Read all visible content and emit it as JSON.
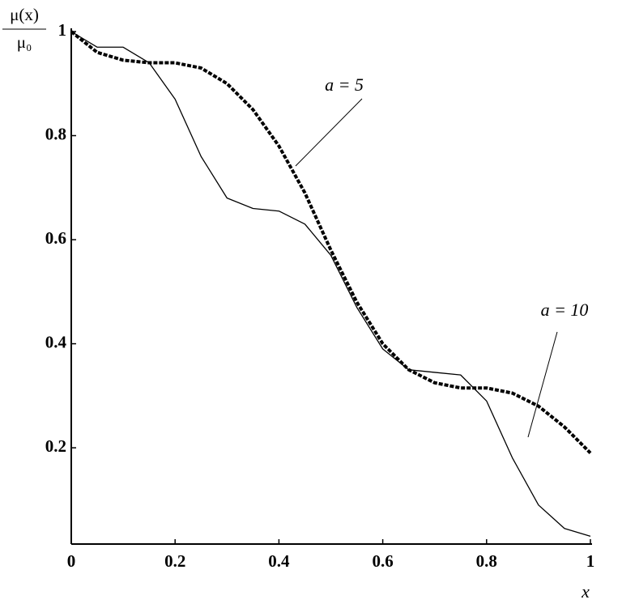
{
  "chart_data": {
    "type": "line",
    "y_label": {
      "numerator": "μ(x)",
      "denominator": "μ₀"
    },
    "x_label": "x",
    "x": [
      0,
      0.05,
      0.1,
      0.15,
      0.2,
      0.25,
      0.3,
      0.35,
      0.4,
      0.45,
      0.5,
      0.55,
      0.6,
      0.65,
      0.7,
      0.75,
      0.8,
      0.85,
      0.9,
      0.95,
      1
    ],
    "series": [
      {
        "name": "a = 5",
        "color": "#000000",
        "dashed": true,
        "values": [
          1.0,
          0.96,
          0.945,
          0.94,
          0.94,
          0.93,
          0.9,
          0.85,
          0.78,
          0.69,
          0.58,
          0.48,
          0.4,
          0.35,
          0.325,
          0.315,
          0.315,
          0.305,
          0.28,
          0.24,
          0.19
        ]
      },
      {
        "name": "a = 10",
        "color": "#000000",
        "dashed": false,
        "values": [
          1.0,
          0.97,
          0.97,
          0.94,
          0.87,
          0.76,
          0.68,
          0.66,
          0.655,
          0.63,
          0.57,
          0.47,
          0.39,
          0.35,
          0.345,
          0.34,
          0.29,
          0.18,
          0.09,
          0.045,
          0.03
        ]
      }
    ],
    "xlim": [
      0,
      1
    ],
    "ylim": [
      0.015,
      1
    ],
    "xticks": [
      0,
      0.2,
      0.4,
      0.6,
      0.8,
      1
    ],
    "yticks": [
      0.2,
      0.4,
      0.6,
      0.8,
      1
    ],
    "grid": false
  }
}
